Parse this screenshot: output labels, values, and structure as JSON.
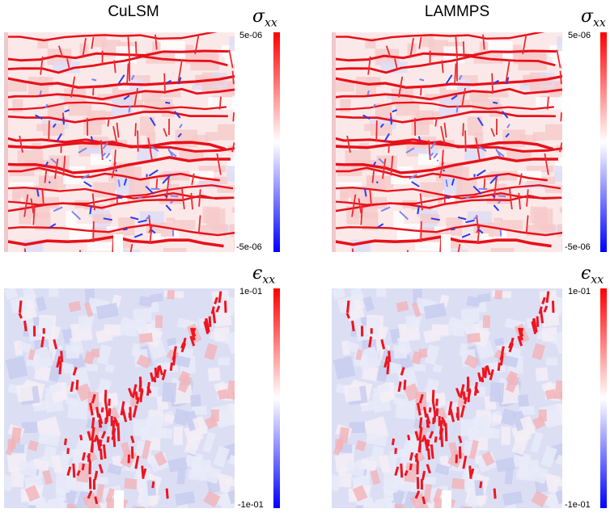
{
  "columns": [
    {
      "title": "CuLSM"
    },
    {
      "title": "LAMMPS"
    }
  ],
  "rows": [
    {
      "symbol": "σ",
      "subscript": "xx",
      "max_label": "5e-06",
      "min_label": "-5e-06",
      "field": "stress"
    },
    {
      "symbol": "ϵ",
      "subscript": "xx",
      "max_label": "1e-01",
      "min_label": "-1e-01",
      "field": "strain"
    }
  ],
  "colors": {
    "positive": "#ff0000",
    "neutral": "#ffffff",
    "negative": "#0000ff"
  }
}
